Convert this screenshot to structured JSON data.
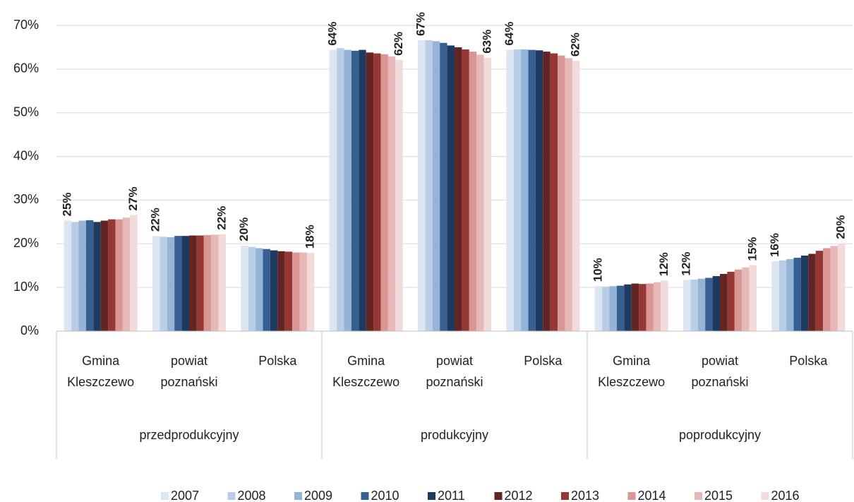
{
  "chart_data": {
    "type": "bar",
    "groups": [
      {
        "name": "przedprodukcyjny",
        "categories": [
          "Gmina Kleszczewo",
          "powiat poznański",
          "Polska"
        ]
      },
      {
        "name": "produkcyjny",
        "categories": [
          "Gmina Kleszczewo",
          "powiat poznański",
          "Polska"
        ]
      },
      {
        "name": "poprodukcyjny",
        "categories": [
          "Gmina Kleszczewo",
          "powiat poznański",
          "Polska"
        ]
      }
    ],
    "ylim": [
      0,
      70
    ],
    "yticks": [
      {
        "value": 0,
        "label": "0%"
      },
      {
        "value": 10,
        "label": "10%"
      },
      {
        "value": 20,
        "label": "20%"
      },
      {
        "value": 30,
        "label": "30%"
      },
      {
        "value": 40,
        "label": "40%"
      },
      {
        "value": 50,
        "label": "50%"
      },
      {
        "value": 60,
        "label": "60%"
      },
      {
        "value": 70,
        "label": "70%"
      }
    ],
    "grid": true,
    "legend": "bottom",
    "series": [
      {
        "name": "2007",
        "color": "#dce6f2",
        "label_color": "#2e4a7a",
        "values": [
          25.3,
          21.8,
          19.6,
          64.4,
          66.6,
          64.4,
          10.3,
          11.7,
          16.0
        ],
        "value_labels": [
          "25%",
          "22%",
          "20%",
          "64%",
          "67%",
          "64%",
          "10%",
          "12%",
          "16%"
        ]
      },
      {
        "name": "2008",
        "color": "#b9cde5",
        "values": [
          25.0,
          21.6,
          19.3,
          64.8,
          66.6,
          64.5,
          10.2,
          11.8,
          16.2
        ]
      },
      {
        "name": "2009",
        "color": "#95b3d7",
        "values": [
          25.3,
          21.5,
          19.0,
          64.4,
          66.4,
          64.5,
          10.3,
          12.0,
          16.5
        ]
      },
      {
        "name": "2010",
        "color": "#376092",
        "values": [
          25.4,
          21.8,
          18.8,
          64.2,
          66.0,
          64.4,
          10.4,
          12.2,
          16.8
        ]
      },
      {
        "name": "2011",
        "color": "#1f3a60",
        "values": [
          25.0,
          21.8,
          18.5,
          64.4,
          65.4,
          64.3,
          10.7,
          12.6,
          17.3
        ]
      },
      {
        "name": "2012",
        "color": "#632523",
        "values": [
          25.3,
          21.9,
          18.3,
          63.8,
          65.0,
          64.0,
          10.9,
          13.1,
          17.7
        ]
      },
      {
        "name": "2013",
        "color": "#953735",
        "values": [
          25.6,
          21.9,
          18.2,
          63.6,
          64.5,
          63.6,
          10.8,
          13.6,
          18.4
        ]
      },
      {
        "name": "2014",
        "color": "#d99694",
        "values": [
          25.6,
          22.0,
          18.0,
          63.4,
          64.0,
          63.1,
          10.9,
          14.1,
          19.0
        ]
      },
      {
        "name": "2015",
        "color": "#e6b9b8",
        "values": [
          26.0,
          22.1,
          18.0,
          62.9,
          63.3,
          62.5,
          11.2,
          14.6,
          19.5
        ]
      },
      {
        "name": "2016",
        "color": "#f2dcdb",
        "label_color": "#e46c0a",
        "values": [
          26.6,
          22.2,
          17.9,
          62.1,
          62.6,
          61.9,
          11.6,
          15.1,
          20.1
        ],
        "value_labels": [
          "27%",
          "22%",
          "18%",
          "62%",
          "63%",
          "62%",
          "12%",
          "15%",
          "20%"
        ]
      }
    ]
  }
}
